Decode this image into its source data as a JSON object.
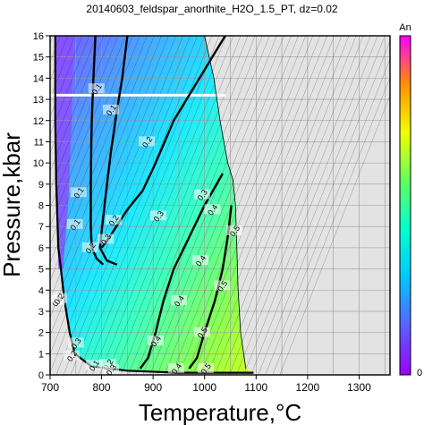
{
  "chart_data": {
    "type": "heatmap",
    "title": "20140603_feldspar_anorthite_H2O_1.5_PT, dz=0.02",
    "xlabel": "Temperature,°C",
    "ylabel": "Pressure,kbar",
    "xlim": [
      700,
      1360
    ],
    "ylim": [
      0,
      16
    ],
    "x_ticks": [
      700,
      800,
      900,
      1000,
      1100,
      1200,
      1300
    ],
    "y_ticks": [
      0,
      1,
      2,
      3,
      4,
      5,
      6,
      7,
      8,
      9,
      10,
      11,
      12,
      13,
      14,
      15,
      16
    ],
    "grid": true,
    "colorbar": {
      "label": "An",
      "min_label": "0",
      "range": [
        0,
        1
      ],
      "colors": [
        "#9a00ff",
        "#5a60ff",
        "#00c8ff",
        "#00ffd0",
        "#60ff60",
        "#f0ff00",
        "#ff9000",
        "#ff00ff"
      ]
    },
    "no_data_color": "#e3e3e3",
    "contours": [
      {
        "value": 0.1,
        "label": "0.1",
        "points": [
          [
            788,
            16
          ],
          [
            784,
            14
          ],
          [
            781,
            12
          ],
          [
            780,
            11
          ],
          [
            779,
            9
          ],
          [
            779,
            7
          ],
          [
            781,
            6
          ],
          [
            790,
            5.5
          ],
          [
            803,
            5.2
          ]
        ]
      },
      {
        "value": 0.2,
        "label": "0.2",
        "points": [
          [
            850,
            16
          ],
          [
            840,
            14
          ],
          [
            830,
            12.5
          ],
          [
            818,
            10.5
          ],
          [
            808,
            8.5
          ],
          [
            801,
            7
          ],
          [
            797,
            6
          ],
          [
            810,
            5.4
          ],
          [
            830,
            5.2
          ]
        ]
      },
      {
        "value": 0.3,
        "label": "0.3",
        "points": [
          [
            1040,
            16
          ],
          [
            990,
            14
          ],
          [
            940,
            12
          ],
          [
            905,
            10
          ],
          [
            880,
            8.7
          ],
          [
            850,
            7.8
          ],
          [
            818,
            6.6
          ],
          [
            800,
            6
          ]
        ]
      },
      {
        "value": 0.4,
        "label": "0.4",
        "points": [
          [
            1035,
            9.5
          ],
          [
            1000,
            8
          ],
          [
            970,
            6.5
          ],
          [
            940,
            5
          ],
          [
            920,
            3.5
          ],
          [
            905,
            2
          ],
          [
            890,
            0.8
          ],
          [
            875,
            0.3
          ]
        ]
      },
      {
        "value": 0.5,
        "label": "0.5",
        "points": [
          [
            1052,
            8
          ],
          [
            1045,
            6.5
          ],
          [
            1035,
            5
          ],
          [
            1020,
            3.5
          ],
          [
            1000,
            2
          ],
          [
            985,
            0.8
          ],
          [
            970,
            0.3
          ]
        ]
      }
    ],
    "contour_labels": [
      {
        "x": 790,
        "y": 13.5,
        "text": "0.1"
      },
      {
        "x": 818,
        "y": 12.5,
        "text": "0.1"
      },
      {
        "x": 755,
        "y": 8.6,
        "text": "0.1"
      },
      {
        "x": 748,
        "y": 7.1,
        "text": "0.1"
      },
      {
        "x": 778,
        "y": 6.0,
        "text": "0.2"
      },
      {
        "x": 823,
        "y": 7.3,
        "text": "0.2"
      },
      {
        "x": 888,
        "y": 11.0,
        "text": "0.2"
      },
      {
        "x": 808,
        "y": 6.4,
        "text": "0.3"
      },
      {
        "x": 910,
        "y": 7.5,
        "text": "0.3"
      },
      {
        "x": 995,
        "y": 8.5,
        "text": "0.3"
      },
      {
        "x": 1058,
        "y": 6.8,
        "text": "0.5"
      },
      {
        "x": 1034,
        "y": 4.2,
        "text": "0.5"
      },
      {
        "x": 1015,
        "y": 7.8,
        "text": "0.4"
      },
      {
        "x": 992,
        "y": 5.4,
        "text": "0.4"
      },
      {
        "x": 950,
        "y": 3.5,
        "text": "0.4"
      },
      {
        "x": 905,
        "y": 1.6,
        "text": "0.4"
      },
      {
        "x": 945,
        "y": 0.3,
        "text": "0.4"
      },
      {
        "x": 995,
        "y": 2.0,
        "text": "0.5"
      },
      {
        "x": 1002,
        "y": 0.3,
        "text": "0.5"
      },
      {
        "x": 750,
        "y": 1.5,
        "text": "0.3"
      },
      {
        "x": 742,
        "y": 0.9,
        "text": "0.2"
      },
      {
        "x": 785,
        "y": 0.45,
        "text": "0.1"
      },
      {
        "x": 812,
        "y": 0.5,
        "text": "0.2"
      },
      {
        "x": 818,
        "y": 0.25,
        "text": "0.3"
      },
      {
        "x": 713,
        "y": 3.5,
        "text": "0.4"
      },
      {
        "x": 717,
        "y": 3.6,
        "text": "0.2"
      }
    ],
    "phase_boundary": [
      [
        1000,
        16
      ],
      [
        1018,
        14
      ],
      [
        1030,
        12
      ],
      [
        1045,
        10
      ],
      [
        1055,
        9.2
      ],
      [
        1060,
        8
      ],
      [
        1065,
        4
      ],
      [
        1070,
        2
      ],
      [
        1080,
        0.3
      ]
    ],
    "solidus": [
      [
        710,
        16
      ],
      [
        710,
        12
      ],
      [
        712,
        9
      ],
      [
        716,
        6
      ],
      [
        721,
        5
      ],
      [
        728,
        3.5
      ],
      [
        738,
        2
      ],
      [
        748,
        1
      ],
      [
        780,
        0.4
      ],
      [
        850,
        0.2
      ],
      [
        950,
        0.1
      ],
      [
        1095,
        0.1
      ]
    ],
    "highlight_isobar": {
      "p": 13.2,
      "t_from": 700,
      "t_to": 1040
    }
  }
}
